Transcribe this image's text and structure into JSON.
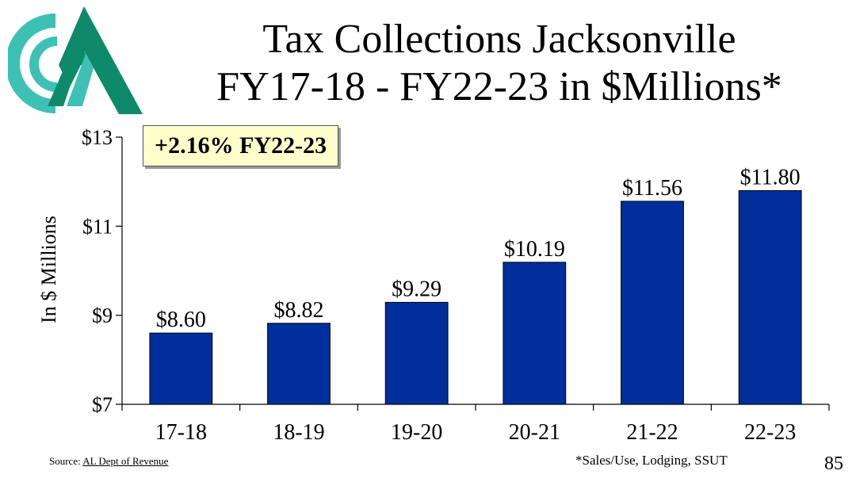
{
  "title_line1": "Tax Collections Jacksonville",
  "title_line2": "FY17-18 - FY22-23 in $Millions*",
  "callout": "+2.16% FY22-23",
  "source_prefix": "Source: ",
  "source_link": "AL Dept of Revenue",
  "footnote": "*Sales/Use, Lodging, SSUT",
  "page_number": "85",
  "colors": {
    "bar": "#002f9c",
    "logo_teal": "#3ec1b4",
    "logo_green": "#0e8a6a",
    "callout_bg": "#ffffcc"
  },
  "chart_data": {
    "type": "bar",
    "title": "Tax Collections Jacksonville FY17-18 - FY22-23 in $Millions*",
    "xlabel": "",
    "ylabel": "In $ Millions",
    "categories": [
      "17-18",
      "18-19",
      "19-20",
      "20-21",
      "21-22",
      "22-23"
    ],
    "values": [
      8.6,
      8.82,
      9.29,
      10.19,
      11.56,
      11.8
    ],
    "data_labels": [
      "$8.60",
      "$8.82",
      "$9.29",
      "$10.19",
      "$11.56",
      "$11.80"
    ],
    "ylim": [
      7,
      13
    ],
    "yticks": [
      7,
      9,
      11,
      13
    ],
    "ytick_labels": [
      "$7",
      "$9",
      "$11",
      "$13"
    ],
    "grid": false,
    "legend": "none"
  }
}
